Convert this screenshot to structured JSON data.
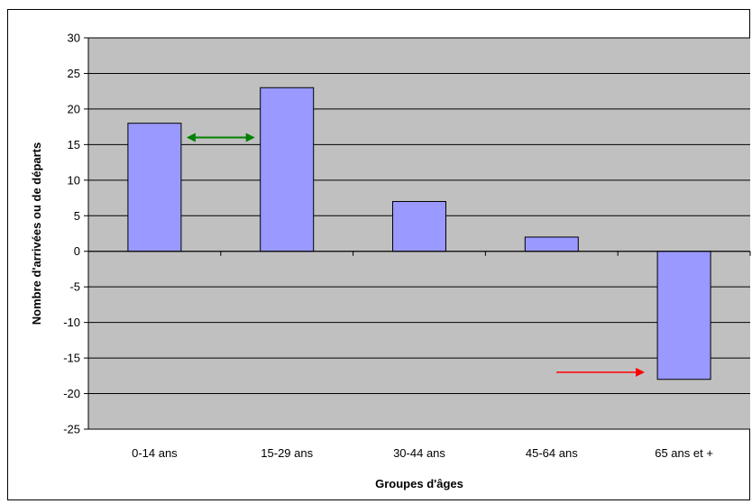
{
  "chart_data": {
    "type": "bar",
    "title": "",
    "xlabel": "Groupes d'âges",
    "ylabel": "Nombre d'arrivées ou de départs",
    "categories": [
      "0-14 ans",
      "15-29 ans",
      "30-44 ans",
      "45-64 ans",
      "65 ans et +"
    ],
    "values": [
      18,
      23,
      7,
      2,
      -18
    ],
    "ylim": [
      -25,
      30
    ],
    "yticks": [
      30,
      25,
      20,
      15,
      10,
      5,
      0,
      -5,
      -10,
      -15,
      -20,
      -25
    ],
    "grid": true,
    "legend": "none",
    "colors": {
      "plot_background": "#c0c0c0",
      "bar_fill": "#9999ff",
      "bar_stroke": "#000000",
      "gridline": "#000000"
    },
    "annotations": [
      {
        "type": "double-arrow",
        "from_category": "0-14 ans",
        "to_category": "15-29 ans",
        "y": 16,
        "color": "#008000"
      },
      {
        "type": "arrow",
        "pointing_to_category": "65 ans et +",
        "y": -17,
        "color": "#ff0000"
      }
    ]
  }
}
